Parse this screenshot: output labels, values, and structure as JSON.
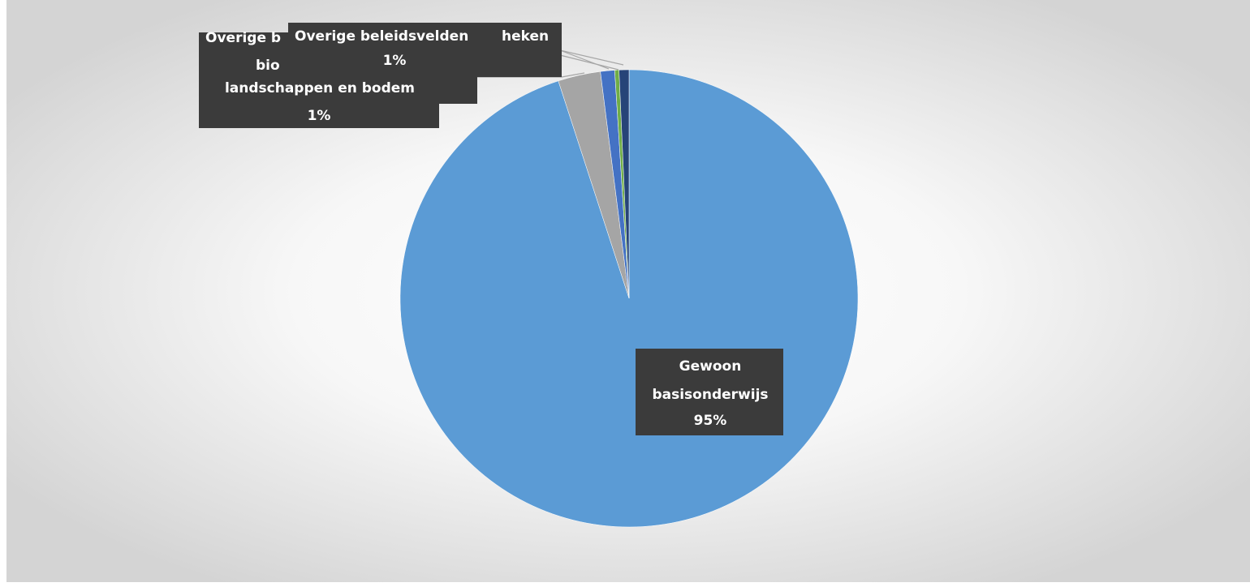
{
  "chart_data": {
    "type": "pie",
    "values": [
      95,
      3,
      1,
      0.3,
      0.7
    ],
    "value_labels": [
      "95%",
      null,
      "1%",
      null,
      "1%"
    ],
    "labels": [
      [
        "Gewoon",
        "basisonderwijs"
      ],
      null,
      [
        "Overige b",
        "bio",
        "landschappen en bodem"
      ],
      [
        "heken"
      ],
      [
        "Overige beleidsvelden"
      ]
    ],
    "colors": [
      "#5b9bd5",
      "#a5a5a5",
      "#4472c4",
      "#70ad47",
      "#264478"
    ]
  }
}
